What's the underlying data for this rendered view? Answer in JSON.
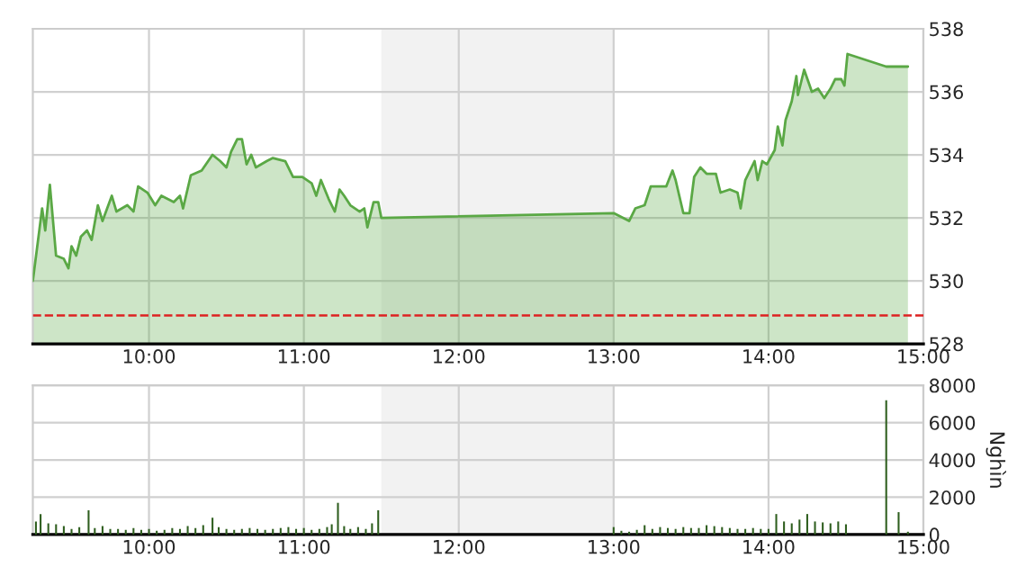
{
  "chart_data": [
    {
      "type": "area",
      "color": "#5aa845",
      "x": [
        9.25,
        9.31,
        9.33,
        9.36,
        9.4,
        9.45,
        9.48,
        9.5,
        9.53,
        9.56,
        9.6,
        9.63,
        9.67,
        9.7,
        9.76,
        9.79,
        9.86,
        9.9,
        9.93,
        9.99,
        10.04,
        10.08,
        10.16,
        10.2,
        10.22,
        10.27,
        10.34,
        10.41,
        10.46,
        10.5,
        10.53,
        10.57,
        10.6,
        10.63,
        10.66,
        10.69,
        10.76,
        10.8,
        10.88,
        10.93,
        10.99,
        11.05,
        11.08,
        11.11,
        11.16,
        11.2,
        11.23,
        11.26,
        11.3,
        11.36,
        11.39,
        11.41,
        11.45,
        11.48,
        11.5,
        13.0,
        13.04,
        13.1,
        13.14,
        13.2,
        13.24,
        13.34,
        13.38,
        13.4,
        13.45,
        13.49,
        13.52,
        13.56,
        13.6,
        13.66,
        13.69,
        13.75,
        13.8,
        13.82,
        13.85,
        13.91,
        13.93,
        13.96,
        13.99,
        14.04,
        14.06,
        14.09,
        14.11,
        14.15,
        14.18,
        14.19,
        14.23,
        14.28,
        14.32,
        14.36,
        14.4,
        14.43,
        14.47,
        14.49,
        14.51,
        14.76,
        14.9
      ],
      "values": [
        530.0,
        532.3,
        531.6,
        533.05,
        530.8,
        530.7,
        530.4,
        531.1,
        530.8,
        531.4,
        531.6,
        531.3,
        532.4,
        531.9,
        532.7,
        532.2,
        532.4,
        532.2,
        533.0,
        532.8,
        532.4,
        532.7,
        532.5,
        532.7,
        532.3,
        533.35,
        533.5,
        534.0,
        533.8,
        533.6,
        534.1,
        534.5,
        534.5,
        533.7,
        534.0,
        533.6,
        533.8,
        533.9,
        533.8,
        533.3,
        533.3,
        533.1,
        532.7,
        533.2,
        532.6,
        532.2,
        532.9,
        532.7,
        532.4,
        532.2,
        532.3,
        531.7,
        532.5,
        532.5,
        532.0,
        532.15,
        532.05,
        531.9,
        532.3,
        532.4,
        533.0,
        533.0,
        533.5,
        533.2,
        532.15,
        532.15,
        533.3,
        533.6,
        533.4,
        533.4,
        532.8,
        532.9,
        532.8,
        532.3,
        533.2,
        533.8,
        533.2,
        533.8,
        533.7,
        534.15,
        534.9,
        534.3,
        535.1,
        535.7,
        536.5,
        535.9,
        536.7,
        536.0,
        536.1,
        535.8,
        536.1,
        536.4,
        536.4,
        536.2,
        537.2,
        536.8,
        536.8
      ],
      "xlim": [
        9.25,
        15
      ],
      "xticks": [
        {
          "value": 10,
          "label": "10:00"
        },
        {
          "value": 11,
          "label": "11:00"
        },
        {
          "value": 12,
          "label": "12:00"
        },
        {
          "value": 13,
          "label": "13:00"
        },
        {
          "value": 14,
          "label": "14:00"
        },
        {
          "value": 15,
          "label": "15:00"
        }
      ],
      "ylim": [
        528,
        538
      ],
      "yticks": [
        528,
        530,
        532,
        534,
        536,
        538
      ],
      "grid": true,
      "bands": [
        {
          "axis": "x",
          "from": 11.5,
          "to": 13.0,
          "color": "#f2f2f2"
        }
      ],
      "ref_lines": [
        {
          "axis": "y",
          "value": 528.9,
          "color": "#dd2222",
          "line_style": "dashed"
        }
      ]
    },
    {
      "type": "bar",
      "color": "#2e5e1e",
      "ylabel": "Nghìn",
      "x": [
        9.27,
        9.3,
        9.35,
        9.4,
        9.45,
        9.5,
        9.55,
        9.61,
        9.65,
        9.7,
        9.75,
        9.8,
        9.85,
        9.9,
        9.95,
        10.0,
        10.05,
        10.1,
        10.15,
        10.2,
        10.25,
        10.3,
        10.35,
        10.41,
        10.45,
        10.5,
        10.55,
        10.6,
        10.65,
        10.7,
        10.75,
        10.8,
        10.85,
        10.9,
        10.95,
        11.0,
        11.05,
        11.1,
        11.15,
        11.18,
        11.22,
        11.26,
        11.3,
        11.35,
        11.4,
        11.44,
        11.48,
        13.0,
        13.05,
        13.1,
        13.15,
        13.2,
        13.25,
        13.3,
        13.35,
        13.4,
        13.45,
        13.5,
        13.55,
        13.6,
        13.65,
        13.7,
        13.75,
        13.8,
        13.85,
        13.9,
        13.95,
        14.0,
        14.05,
        14.1,
        14.15,
        14.2,
        14.25,
        14.3,
        14.35,
        14.4,
        14.45,
        14.5,
        14.76,
        14.84,
        14.9
      ],
      "values": [
        700,
        1100,
        600,
        550,
        450,
        300,
        400,
        1300,
        350,
        450,
        300,
        300,
        250,
        350,
        250,
        300,
        200,
        250,
        350,
        300,
        450,
        350,
        500,
        900,
        400,
        300,
        250,
        300,
        350,
        300,
        250,
        300,
        350,
        400,
        300,
        350,
        250,
        300,
        400,
        550,
        1700,
        450,
        300,
        400,
        300,
        600,
        1300,
        400,
        200,
        150,
        250,
        500,
        300,
        400,
        350,
        300,
        400,
        350,
        350,
        500,
        450,
        400,
        350,
        300,
        300,
        350,
        300,
        300,
        1100,
        700,
        600,
        800,
        1100,
        700,
        650,
        600,
        700,
        550,
        7200,
        1200,
        150
      ],
      "xlim": [
        9.25,
        15
      ],
      "xticks": [
        {
          "value": 10,
          "label": "10:00"
        },
        {
          "value": 11,
          "label": "11:00"
        },
        {
          "value": 12,
          "label": "12:00"
        },
        {
          "value": 13,
          "label": "13:00"
        },
        {
          "value": 14,
          "label": "14:00"
        },
        {
          "value": 15,
          "label": "15:00"
        }
      ],
      "ylim": [
        0,
        8000
      ],
      "yticks": [
        0,
        2000,
        4000,
        6000,
        8000
      ],
      "grid": true,
      "bands": [
        {
          "axis": "x",
          "from": 11.5,
          "to": 13.0,
          "color": "#f2f2f2"
        }
      ]
    }
  ]
}
